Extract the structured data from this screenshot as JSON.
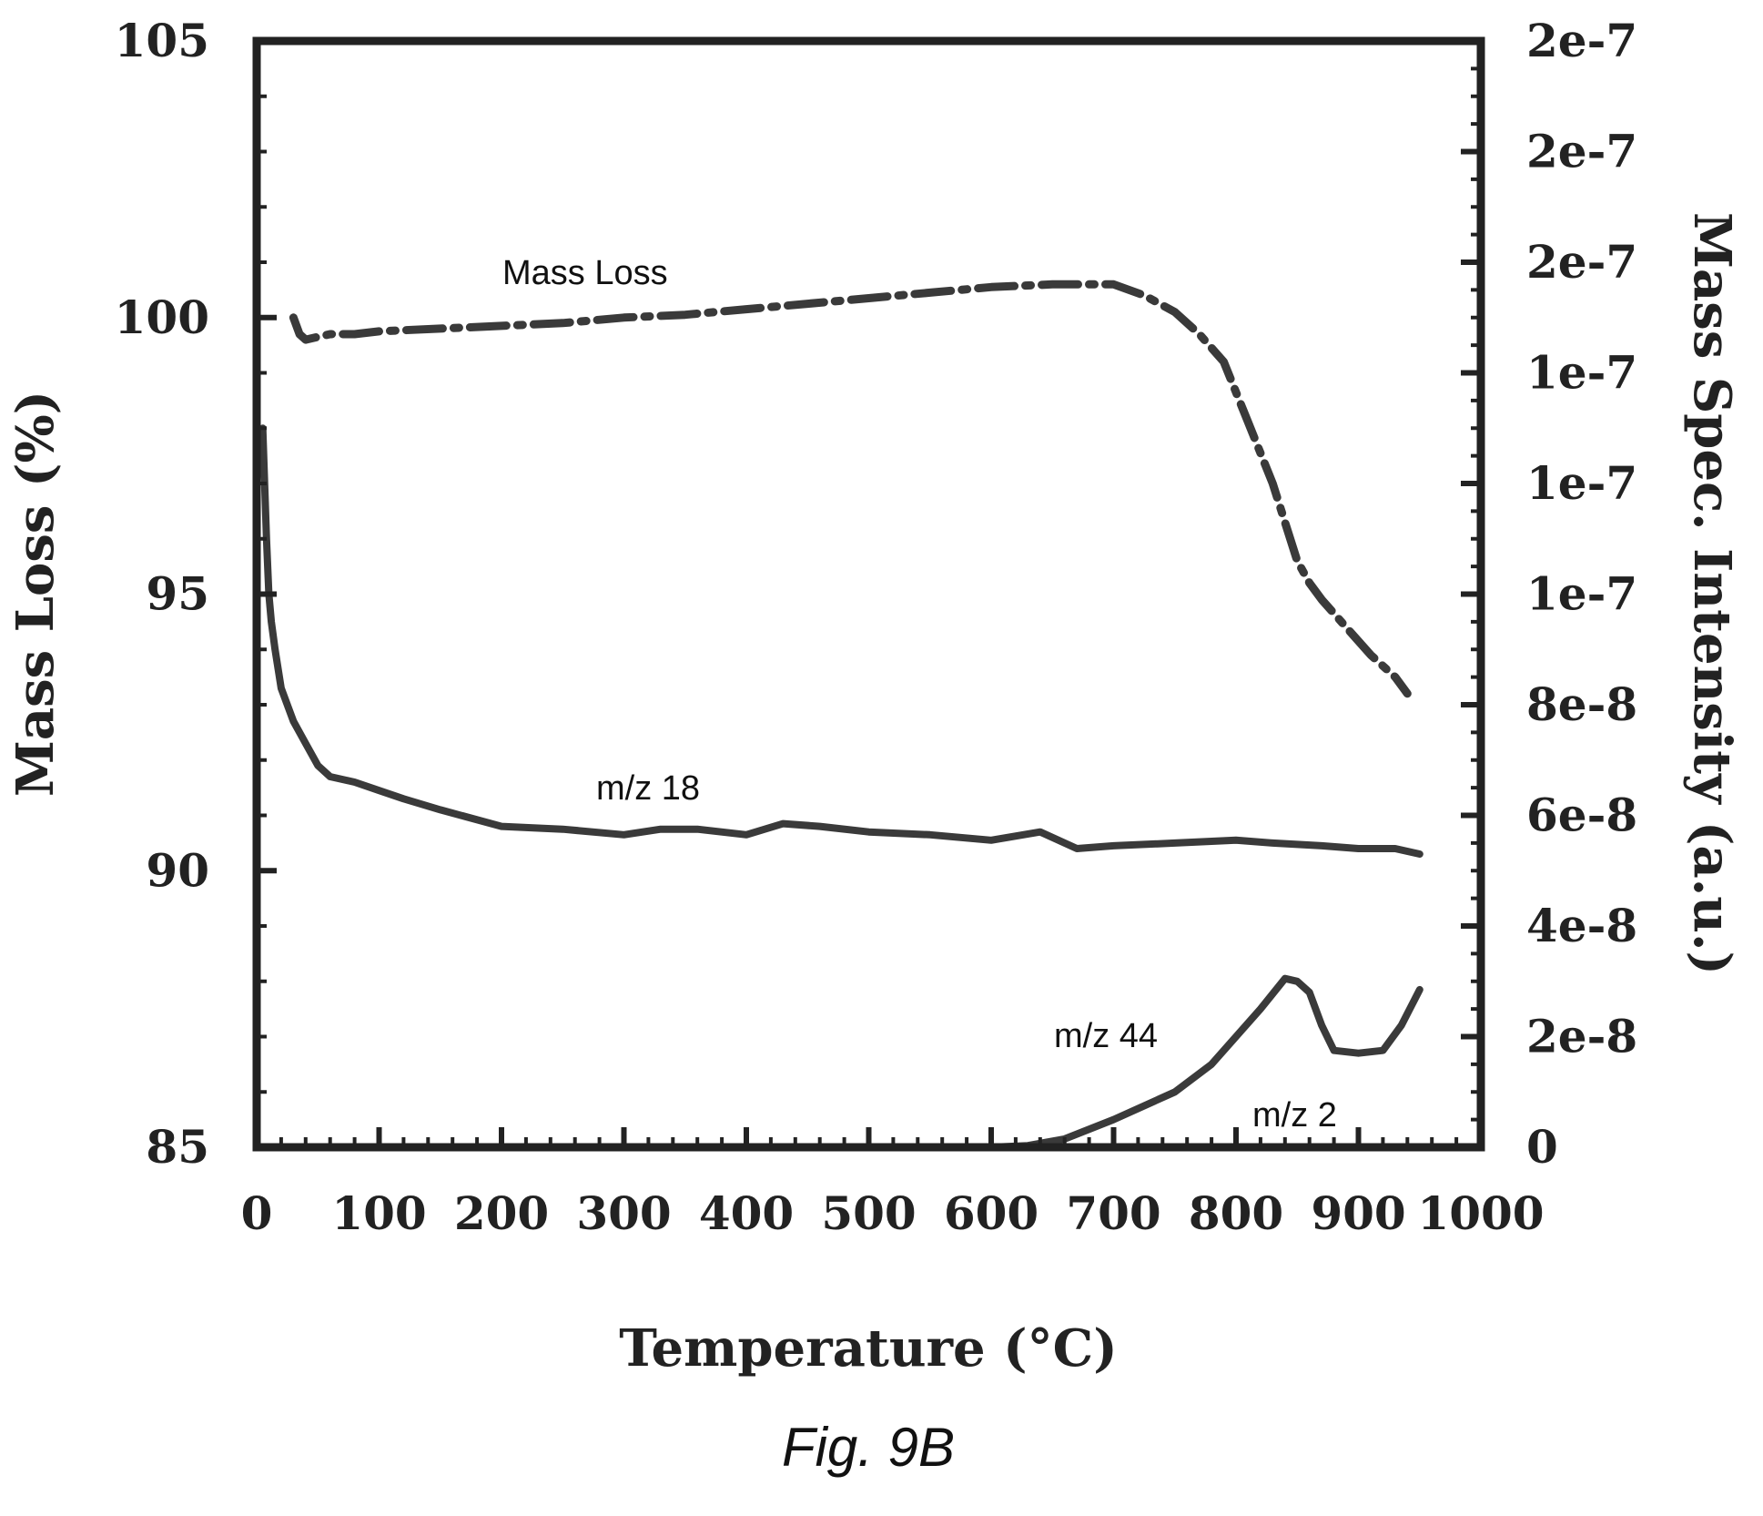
{
  "chart_data": {
    "type": "line",
    "xlabel": "Temperature (°C)",
    "ylabel_left": "Mass Loss (%)",
    "ylabel_right": "Mass Spec. Intensity (a.u.)",
    "caption": "Fig. 9B",
    "x_ticks": [
      "0",
      "100",
      "200",
      "300",
      "400",
      "500",
      "600",
      "700",
      "800",
      "900",
      "1000"
    ],
    "y_left_ticks": [
      "85",
      "90",
      "95",
      "100",
      "105"
    ],
    "y_right_ticks": [
      "0",
      "2e-8",
      "4e-8",
      "6e-8",
      "8e-8",
      "1e-7",
      "1e-7",
      "1e-7",
      "2e-7",
      "2e-7",
      "2e-7"
    ],
    "xlim": [
      0,
      1000
    ],
    "ylim_left": [
      85,
      105
    ],
    "ylim_right": [
      0,
      2e-07
    ],
    "grid": false,
    "series": [
      {
        "name": "Mass Loss",
        "axis": "left",
        "style": "dash-dot",
        "x": [
          30,
          35,
          40,
          60,
          80,
          100,
          150,
          200,
          250,
          300,
          350,
          400,
          450,
          500,
          550,
          600,
          650,
          700,
          725,
          750,
          770,
          790,
          810,
          830,
          850,
          860,
          870,
          890,
          910,
          930,
          940
        ],
        "y": [
          100.0,
          99.7,
          99.6,
          99.7,
          99.7,
          99.75,
          99.8,
          99.85,
          99.9,
          100.0,
          100.05,
          100.15,
          100.25,
          100.35,
          100.45,
          100.55,
          100.6,
          100.6,
          100.4,
          100.1,
          99.7,
          99.2,
          98.1,
          97.0,
          95.6,
          95.2,
          94.9,
          94.4,
          93.9,
          93.5,
          93.2
        ]
      },
      {
        "name": "m/z 18",
        "axis": "right",
        "style": "solid",
        "x": [
          5,
          8,
          10,
          12,
          15,
          20,
          30,
          40,
          50,
          60,
          80,
          100,
          120,
          150,
          200,
          250,
          300,
          330,
          360,
          400,
          430,
          460,
          500,
          550,
          600,
          640,
          670,
          700,
          750,
          800,
          830,
          870,
          900,
          930,
          950
        ],
        "y": [
          1.3e-07,
          1.1e-07,
          1e-07,
          9.5e-08,
          9e-08,
          8.3e-08,
          7.7e-08,
          7.3e-08,
          6.9e-08,
          6.7e-08,
          6.6e-08,
          6.45e-08,
          6.3e-08,
          6.1e-08,
          5.8e-08,
          5.75e-08,
          5.65e-08,
          5.75e-08,
          5.75e-08,
          5.65e-08,
          5.85e-08,
          5.8e-08,
          5.7e-08,
          5.65e-08,
          5.55e-08,
          5.7e-08,
          5.4e-08,
          5.45e-08,
          5.5e-08,
          5.55e-08,
          5.5e-08,
          5.45e-08,
          5.4e-08,
          5.4e-08,
          5.3e-08
        ]
      },
      {
        "name": "m/z 44",
        "axis": "right",
        "style": "solid",
        "x": [
          0,
          500,
          550,
          600,
          630,
          660,
          700,
          750,
          780,
          800,
          820,
          840,
          850,
          860,
          870,
          880,
          900,
          920,
          935,
          950
        ],
        "y": [
          0,
          0,
          0,
          0,
          3e-10,
          1.5e-09,
          5e-09,
          1e-08,
          1.5e-08,
          2e-08,
          2.5e-08,
          3.05e-08,
          3e-08,
          2.8e-08,
          2.2e-08,
          1.75e-08,
          1.7e-08,
          1.75e-08,
          2.2e-08,
          2.85e-08
        ]
      },
      {
        "name": "m/z 2",
        "axis": "right",
        "style": "solid",
        "x": [
          0,
          100,
          200,
          300,
          400,
          500,
          600,
          700,
          800,
          900,
          950
        ],
        "y": [
          0,
          0,
          0,
          0,
          0,
          0,
          0,
          0,
          0,
          0,
          0
        ]
      }
    ]
  }
}
